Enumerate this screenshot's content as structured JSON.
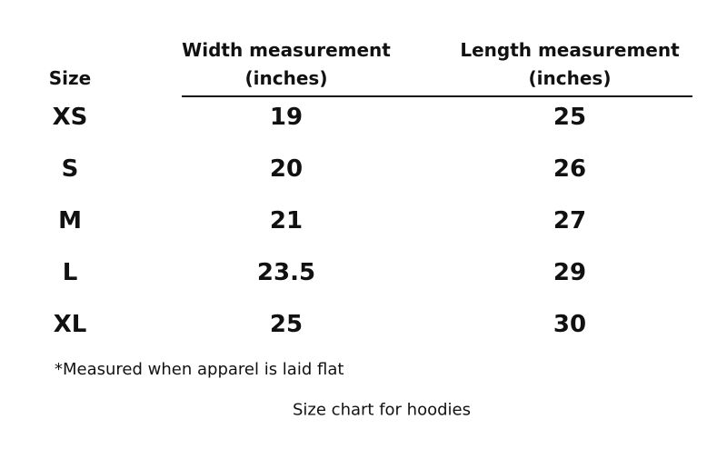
{
  "table": {
    "header": [
      [
        "Size"
      ],
      [
        "Width measurement",
        "(inches)"
      ],
      [
        "Length measurement",
        "(inches)"
      ]
    ],
    "rows": [
      [
        "XS",
        19,
        25
      ],
      [
        "S",
        20,
        26
      ],
      [
        "M",
        21,
        27
      ],
      [
        "L",
        23.5,
        29
      ],
      [
        "XL",
        25,
        30
      ]
    ]
  },
  "footnote": "*Measured when apparel is laid flat",
  "caption": "Size chart for hoodies"
}
